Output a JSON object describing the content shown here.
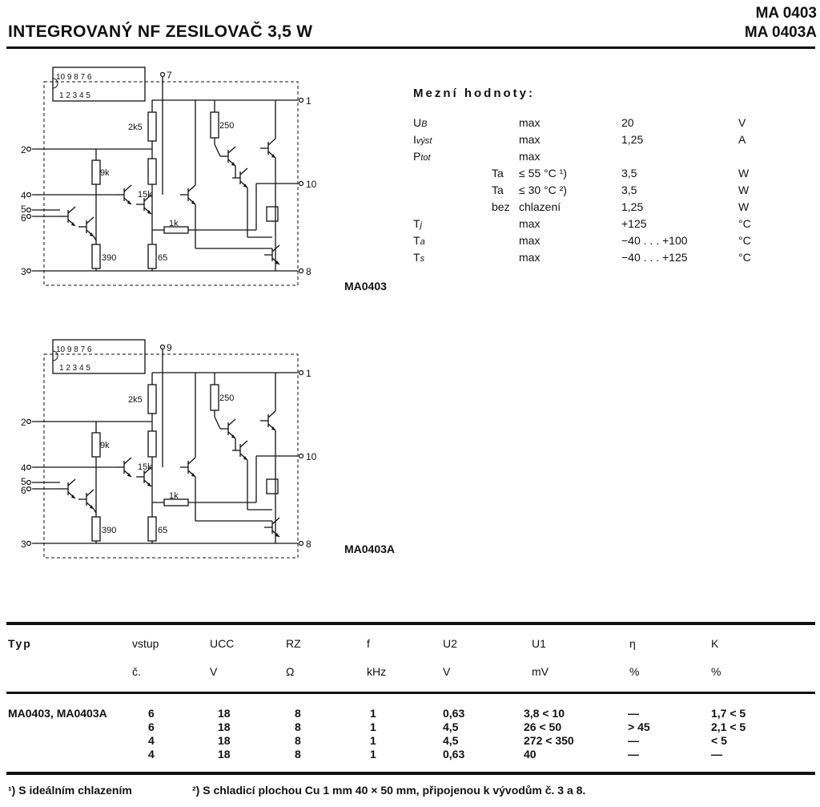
{
  "header": {
    "title": "INTEGROVANÝ NF ZESILOVAČ 3,5 W",
    "models": [
      "MA 0403",
      "MA 0403A"
    ]
  },
  "schematics": [
    {
      "caption": "MA0403",
      "package_top_pins": "10 9   8   7 6",
      "package_bottom_pins": "1  2   3   4 5",
      "pins": {
        "top": "7",
        "p1": "1",
        "p2": "2",
        "p4": "4",
        "p5": "5",
        "p6": "6",
        "p3": "3",
        "p8": "8",
        "p10": "10"
      },
      "resistors": {
        "r2k5": "2k5",
        "r250": "250",
        "r9k": "9k",
        "r15k": "15k",
        "r1k": "1k",
        "r390": "390",
        "r65": "65"
      }
    },
    {
      "caption": "MA0403A",
      "package_top_pins": "10 9   8   7 6",
      "package_bottom_pins": "1  2   3   4 5",
      "pins": {
        "top": "9",
        "p1": "1",
        "p2": "2",
        "p4": "4",
        "p5": "5",
        "p6": "6",
        "p3": "3",
        "p8": "8",
        "p10": "10"
      },
      "resistors": {
        "r2k5": "2k5",
        "r250": "250",
        "r9k": "9k",
        "r15k": "15k",
        "r1k": "1k",
        "r390": "390",
        "r65": "65"
      }
    }
  ],
  "limits": {
    "heading": "Mezní hodnoty:",
    "rows": [
      {
        "sym": "U",
        "sub": "B",
        "cond": "max",
        "val": "20",
        "unit": "V"
      },
      {
        "sym": "I",
        "sub": "výst",
        "cond": "max",
        "val": "1,25",
        "unit": "A"
      },
      {
        "sym": "P",
        "sub": "tot",
        "cond": "max",
        "val": "",
        "unit": ""
      },
      {
        "sym": "",
        "sub": "",
        "pre": "Ta",
        "cond": "≤ 55 °C ¹)",
        "val": "3,5",
        "unit": "W"
      },
      {
        "sym": "",
        "sub": "",
        "pre": "Ta",
        "cond": "≤ 30 °C ²)",
        "val": "3,5",
        "unit": "W"
      },
      {
        "sym": "",
        "sub": "",
        "pre": "bez",
        "cond": "chlazení",
        "val": "1,25",
        "unit": "W"
      },
      {
        "sym": "T",
        "sub": "j",
        "cond": "max",
        "val": "+125",
        "unit": "°C"
      },
      {
        "sym": "T",
        "sub": "a",
        "cond": "max",
        "val": "−40 . . . +100",
        "unit": "°C"
      },
      {
        "sym": "T",
        "sub": "s",
        "cond": "max",
        "val": "−40 . . . +125",
        "unit": "°C"
      }
    ]
  },
  "table": {
    "headers": [
      "Typ",
      "vstup",
      "UCC",
      "RZ",
      "f",
      "U2",
      "U1",
      "η",
      "K"
    ],
    "units": [
      "",
      "č.",
      "V",
      "Ω",
      "kHz",
      "V",
      "mV",
      "%",
      "%"
    ],
    "type_label": "MA0403, MA0403A",
    "rows": [
      [
        "6",
        "18",
        "8",
        "1",
        "0,63",
        "3,8 < 10",
        "—",
        "1,7 < 5"
      ],
      [
        "6",
        "18",
        "8",
        "1",
        "4,5",
        "26  < 50",
        "> 45",
        "2,1 < 5"
      ],
      [
        "4",
        "18",
        "8",
        "1",
        "4,5",
        "272 < 350",
        "—",
        "< 5"
      ],
      [
        "4",
        "18",
        "8",
        "1",
        "0,63",
        "40",
        "—",
        "—"
      ]
    ]
  },
  "footnotes": [
    "¹) S ideálním chlazením",
    "²) S chladicí plochou Cu 1 mm 40 × 50 mm, připojenou k vývodům č. 3 a 8."
  ]
}
